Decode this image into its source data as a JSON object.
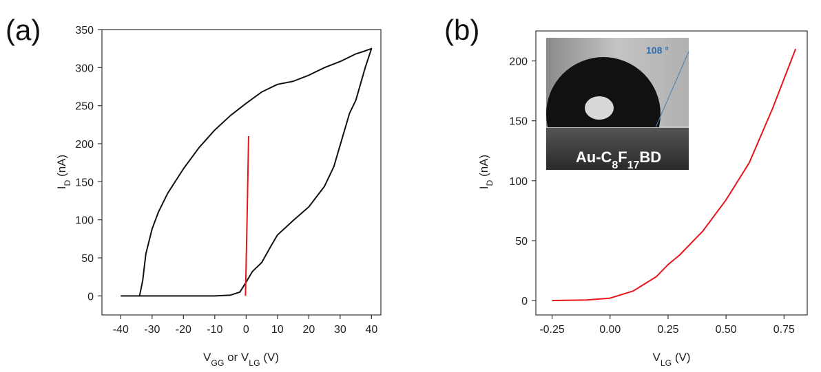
{
  "chart_data": [
    {
      "type": "line",
      "panel_label": "(a)",
      "xlabel": [
        "V",
        "GG",
        " or V",
        "LG",
        " (V)"
      ],
      "ylabel": [
        "I",
        "D",
        " (nA)"
      ],
      "xlim": [
        -46,
        43
      ],
      "ylim": [
        -25,
        350
      ],
      "xticks": [
        -40,
        -30,
        -20,
        -10,
        0,
        10,
        20,
        30,
        40
      ],
      "yticks": [
        0,
        50,
        100,
        150,
        200,
        250,
        300,
        350
      ],
      "grid": false,
      "series": [
        {
          "color": "#111111",
          "x": [
            -40,
            -30,
            -20,
            -10,
            -5,
            -2,
            0,
            2,
            5,
            8,
            10,
            15,
            20,
            25,
            28,
            30,
            33,
            35,
            38,
            40,
            38,
            35,
            30,
            25,
            20,
            15,
            10,
            5,
            0,
            -5,
            -10,
            -15,
            -20,
            -25,
            -28,
            -30,
            -32,
            -33,
            -34,
            -40
          ],
          "values": [
            0,
            0,
            0,
            0,
            1,
            5,
            18,
            32,
            44,
            66,
            80,
            99,
            117,
            144,
            170,
            198,
            240,
            257,
            300,
            325,
            322,
            318,
            308,
            300,
            290,
            282,
            278,
            268,
            253,
            237,
            218,
            195,
            167,
            135,
            110,
            88,
            55,
            20,
            0,
            0
          ]
        },
        {
          "color": "#e8141c",
          "x": [
            -0.2,
            0.3,
            0.8
          ],
          "values": [
            0,
            100,
            210
          ]
        }
      ]
    },
    {
      "type": "line",
      "panel_label": "(b)",
      "xlabel": [
        "V",
        "LG",
        " (V)"
      ],
      "ylabel": [
        "I",
        "D",
        " (nA)"
      ],
      "xlim": [
        -0.32,
        0.85
      ],
      "ylim": [
        -12,
        225
      ],
      "xticks": [
        -0.25,
        {
          "value": 0,
          "label": "0.00"
        },
        0.25,
        {
          "value": 0.5,
          "label": "0.50"
        },
        0.75
      ],
      "yticks": [
        0,
        50,
        100,
        150,
        200
      ],
      "grid": false,
      "series": [
        {
          "color": "#e8141c",
          "x": [
            -0.25,
            -0.1,
            0,
            0.1,
            0.2,
            0.25,
            0.3,
            0.4,
            0.5,
            0.6,
            0.7,
            0.8
          ],
          "values": [
            0,
            0.5,
            2,
            8,
            20,
            30,
            38,
            58,
            84,
            115,
            160,
            210
          ]
        }
      ],
      "inset": {
        "angle_label": "108 °",
        "sample_label": [
          "Au-C",
          "8",
          "F",
          "17",
          "BD"
        ]
      }
    }
  ]
}
